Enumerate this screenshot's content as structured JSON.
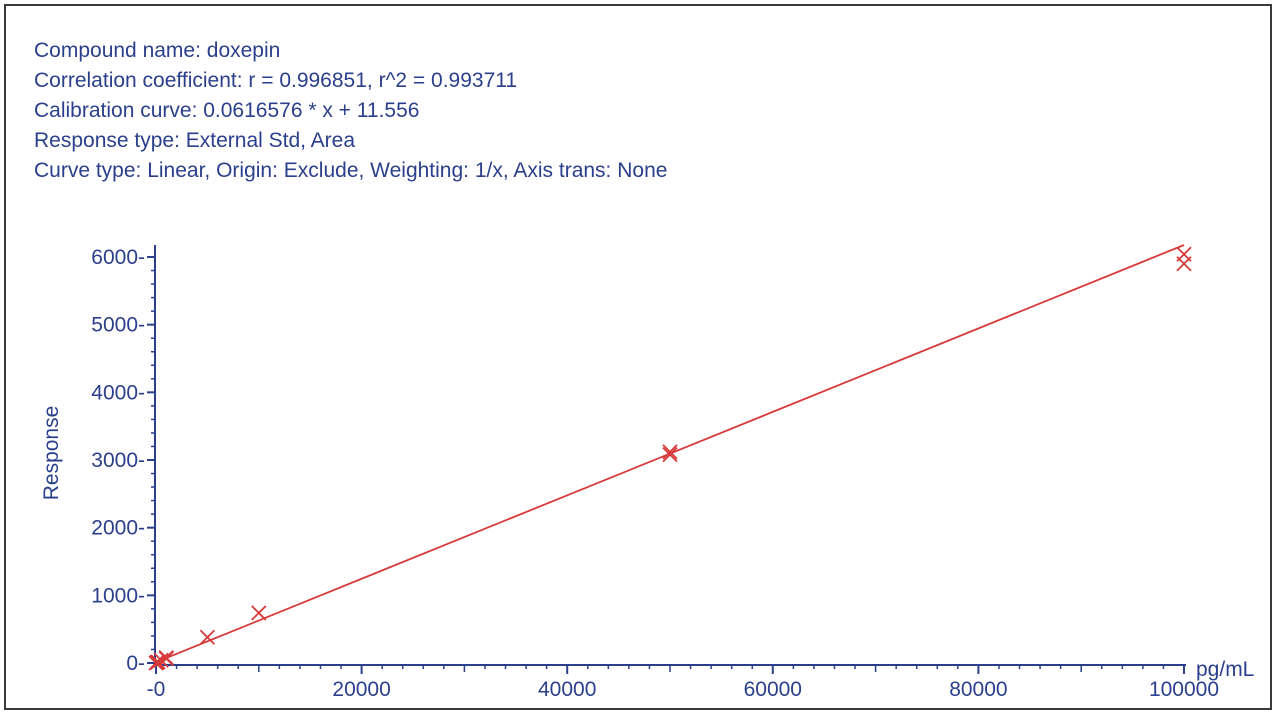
{
  "info": {
    "compound": "Compound name: doxepin",
    "correlation": "Correlation coefficient: r = 0.996851, r^2 = 0.993711",
    "calibration": "Calibration curve: 0.0616576 * x + 11.556",
    "response_type": "Response type: External Std, Area",
    "curve_type": "Curve type: Linear, Origin: Exclude, Weighting: 1/x, Axis trans: None"
  },
  "colors": {
    "axis": "#2b3f8c",
    "text": "#2b3f8c",
    "curve": "#d63a3a",
    "marker": "#d63a3a"
  },
  "chart_data": {
    "type": "scatter",
    "title": "",
    "xlabel": "pg/mL",
    "ylabel": "Response",
    "xlim": [
      0,
      100000
    ],
    "ylim": [
      0,
      6000
    ],
    "x_ticks": [
      0,
      20000,
      40000,
      60000,
      80000,
      100000
    ],
    "y_ticks": [
      0,
      1000,
      2000,
      3000,
      4000,
      5000,
      6000
    ],
    "x_tick_labels": [
      "0",
      "20000",
      "40000",
      "60000",
      "80000",
      "100000"
    ],
    "y_tick_labels": [
      "0",
      "1000",
      "2000",
      "3000",
      "4000",
      "5000",
      "6000"
    ],
    "grid": false,
    "fit": {
      "slope": 0.0616576,
      "intercept": 11.556
    },
    "points": [
      {
        "x": 0,
        "y": 0
      },
      {
        "x": 100,
        "y": 10
      },
      {
        "x": 200,
        "y": 15
      },
      {
        "x": 500,
        "y": 40
      },
      {
        "x": 1000,
        "y": 80
      },
      {
        "x": 1000,
        "y": 65
      },
      {
        "x": 5000,
        "y": 380
      },
      {
        "x": 10000,
        "y": 740
      },
      {
        "x": 50000,
        "y": 3120
      },
      {
        "x": 50000,
        "y": 3080
      },
      {
        "x": 100000,
        "y": 6040
      },
      {
        "x": 100000,
        "y": 5900
      }
    ]
  }
}
